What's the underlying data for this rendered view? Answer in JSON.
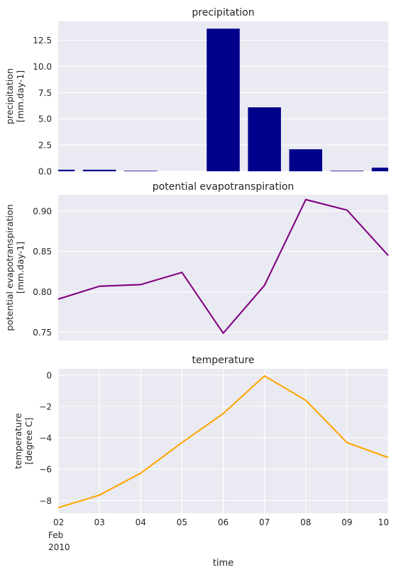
{
  "chart_data": [
    {
      "type": "bar",
      "title": "precipitation",
      "ylabel_lines": [
        "precipitation",
        "[mm.day-1]"
      ],
      "color": "#00008b",
      "background": "#eaeaf2",
      "grid": true,
      "ylim": [
        0,
        14.3
      ],
      "yticks": [
        0.0,
        2.5,
        5.0,
        7.5,
        10.0,
        12.5
      ],
      "ytick_labels": [
        "0.0",
        "2.5",
        "5.0",
        "7.5",
        "10.0",
        "12.5"
      ],
      "x": [
        "2010-02-02",
        "2010-02-03",
        "2010-02-04",
        "2010-02-05",
        "2010-02-06",
        "2010-02-07",
        "2010-02-08",
        "2010-02-09",
        "2010-02-10"
      ],
      "values": [
        0.15,
        0.15,
        0.05,
        0.0,
        13.6,
        6.1,
        2.1,
        0.05,
        0.35
      ]
    },
    {
      "type": "line",
      "title": "potential evapotranspiration",
      "ylabel_lines": [
        "potential evapotranspiration",
        "[mm.day-1]"
      ],
      "color": "#800080",
      "background": "#eaeaf2",
      "grid": true,
      "ylim": [
        0.74,
        0.92
      ],
      "yticks": [
        0.75,
        0.8,
        0.85,
        0.9
      ],
      "ytick_labels": [
        "0.75",
        "0.80",
        "0.85",
        "0.90"
      ],
      "x": [
        "2010-02-02",
        "2010-02-03",
        "2010-02-04",
        "2010-02-05",
        "2010-02-06",
        "2010-02-07",
        "2010-02-08",
        "2010-02-09",
        "2010-02-10"
      ],
      "values": [
        0.791,
        0.807,
        0.809,
        0.824,
        0.749,
        0.808,
        0.914,
        0.901,
        0.845
      ]
    },
    {
      "type": "line",
      "title": "temperature",
      "ylabel_lines": [
        "temperature",
        "[degree C]"
      ],
      "xlabel": "time",
      "color": "#ffa500",
      "background": "#eaeaf2",
      "grid": true,
      "ylim": [
        -8.8,
        0.4
      ],
      "yticks": [
        -8,
        -6,
        -4,
        -2,
        0
      ],
      "ytick_labels": [
        "−8",
        "−6",
        "−4",
        "−2",
        "0"
      ],
      "x": [
        "2010-02-02",
        "2010-02-03",
        "2010-02-04",
        "2010-02-05",
        "2010-02-06",
        "2010-02-07",
        "2010-02-08",
        "2010-02-09",
        "2010-02-10"
      ],
      "values": [
        -8.45,
        -7.65,
        -6.25,
        -4.3,
        -2.45,
        -0.05,
        -1.6,
        -4.3,
        -5.25
      ],
      "xtick_labels": [
        "02",
        "03",
        "04",
        "05",
        "06",
        "07",
        "08",
        "09",
        "10"
      ],
      "xtick_sublabels": [
        "Feb",
        "2010"
      ]
    }
  ]
}
